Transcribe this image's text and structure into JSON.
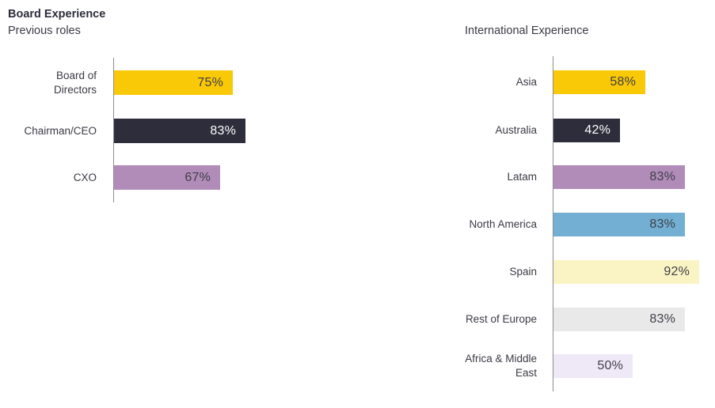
{
  "page": {
    "background": "#FFFFFF"
  },
  "styles": {
    "axis_color": "#8E8E93",
    "category_label_color": "#3A3A44",
    "title_color": "#2D2D3C",
    "value_label_dark": "#3F3F49",
    "value_label_light": "#FFFFFF"
  },
  "chart_data": [
    {
      "type": "bar",
      "orientation": "horizontal",
      "title": "Board Experience",
      "subtitle": "Previous roles",
      "categories": [
        "Board of Directors",
        "Chairman/CEO",
        "CXO"
      ],
      "values": [
        75,
        83,
        67
      ],
      "value_labels": [
        "75%",
        "83%",
        "67%"
      ],
      "unit": "%",
      "xlim": [
        0,
        100
      ],
      "grid": false,
      "legend": false,
      "bar_colors": [
        "#F9C806",
        "#2D2D3C",
        "#B18CB8"
      ],
      "value_text_colors": [
        "#3F3F49",
        "#FFFFFF",
        "#3F3F49"
      ]
    },
    {
      "type": "bar",
      "orientation": "horizontal",
      "title": "International Experience",
      "categories": [
        "Asia",
        "Australia",
        "Latam",
        "North America",
        "Spain",
        "Rest of Europe",
        "Africa & Middle East"
      ],
      "values": [
        58,
        42,
        83,
        83,
        92,
        83,
        50
      ],
      "value_labels": [
        "58%",
        "42%",
        "83%",
        "83%",
        "92%",
        "83%",
        "50%"
      ],
      "unit": "%",
      "xlim": [
        0,
        100
      ],
      "grid": false,
      "legend": false,
      "bar_colors": [
        "#F9C806",
        "#2D2D3C",
        "#B18CB8",
        "#72AFD3",
        "#FAF4C4",
        "#E9E9E9",
        "#EFE8F7"
      ],
      "value_text_colors": [
        "#3F3F49",
        "#FFFFFF",
        "#3F3F49",
        "#3F3F49",
        "#3F3F49",
        "#3F3F49",
        "#3F3F49"
      ]
    }
  ]
}
